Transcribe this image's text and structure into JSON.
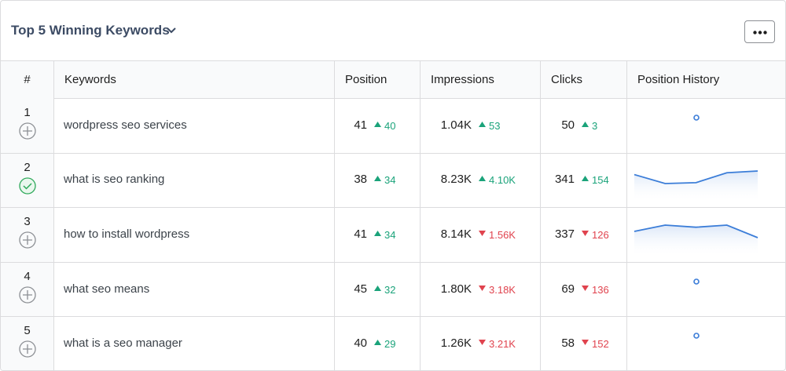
{
  "header": {
    "title": "Top 5 Winning Keywords"
  },
  "table": {
    "columns": [
      "#",
      "Keywords",
      "Position",
      "Impressions",
      "Clicks",
      "Position History"
    ],
    "rows": [
      {
        "rank": 1,
        "status": "add",
        "keyword": "wordpress seo services",
        "position": 41,
        "position_change": {
          "text": "40",
          "direction": "up"
        },
        "impressions": "1.04K",
        "impressions_change": {
          "text": "53",
          "direction": "up"
        },
        "clicks": 50,
        "clicks_change": {
          "text": "3",
          "direction": "up"
        },
        "history": [
          41
        ]
      },
      {
        "rank": 2,
        "status": "done",
        "keyword": "what is seo ranking",
        "position": 38,
        "position_change": {
          "text": "34",
          "direction": "up"
        },
        "impressions": "8.23K",
        "impressions_change": {
          "text": "4.10K",
          "direction": "up"
        },
        "clicks": 341,
        "clicks_change": {
          "text": "154",
          "direction": "up"
        },
        "history": [
          40,
          45,
          44.5,
          39,
          38
        ]
      },
      {
        "rank": 3,
        "status": "add",
        "keyword": "how to install wordpress",
        "position": 41,
        "position_change": {
          "text": "34",
          "direction": "up"
        },
        "impressions": "8.14K",
        "impressions_change": {
          "text": "1.56K",
          "direction": "down"
        },
        "clicks": 337,
        "clicks_change": {
          "text": "126",
          "direction": "down"
        },
        "history": [
          38,
          35,
          36,
          35,
          41
        ]
      },
      {
        "rank": 4,
        "status": "add",
        "keyword": "what seo means",
        "position": 45,
        "position_change": {
          "text": "32",
          "direction": "up"
        },
        "impressions": "1.80K",
        "impressions_change": {
          "text": "3.18K",
          "direction": "down"
        },
        "clicks": 69,
        "clicks_change": {
          "text": "136",
          "direction": "down"
        },
        "history": [
          45
        ]
      },
      {
        "rank": 5,
        "status": "add",
        "keyword": "what is a seo manager",
        "position": 40,
        "position_change": {
          "text": "29",
          "direction": "up"
        },
        "impressions": "1.26K",
        "impressions_change": {
          "text": "3.21K",
          "direction": "down"
        },
        "clicks": 58,
        "clicks_change": {
          "text": "152",
          "direction": "down"
        },
        "history": [
          40
        ]
      }
    ]
  }
}
